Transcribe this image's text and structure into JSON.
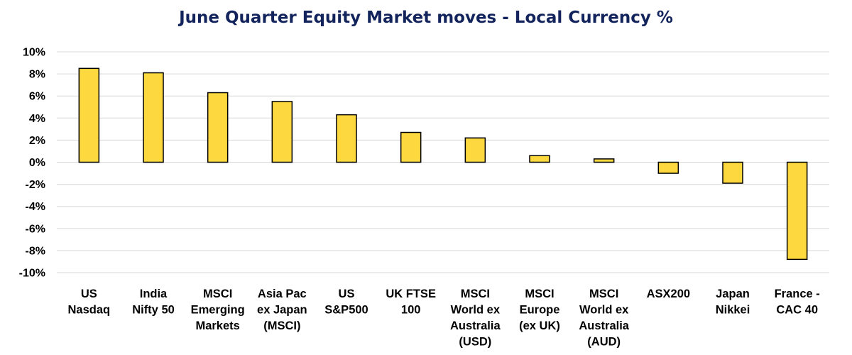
{
  "chart_data": {
    "type": "bar",
    "title": "June Quarter Equity Market moves - Local Currency %",
    "categories": [
      [
        "US",
        "Nasdaq"
      ],
      [
        "India",
        "Nifty 50"
      ],
      [
        "MSCI",
        "Emerging",
        "Markets"
      ],
      [
        "Asia Pac",
        "ex Japan",
        "(MSCI)"
      ],
      [
        "US",
        "S&P500"
      ],
      [
        "UK FTSE",
        "100"
      ],
      [
        "MSCI",
        "World ex",
        "Australia",
        "(USD)"
      ],
      [
        "MSCI",
        "Europe",
        "(ex UK)"
      ],
      [
        "MSCI",
        "World ex",
        "Australia",
        "(AUD)"
      ],
      [
        "ASX200"
      ],
      [
        "Japan",
        "Nikkei"
      ],
      [
        "France -",
        "CAC 40"
      ]
    ],
    "values": [
      8.5,
      8.1,
      6.3,
      5.5,
      4.3,
      2.7,
      2.2,
      0.6,
      0.3,
      -1.0,
      -1.9,
      -8.8
    ],
    "ylim": [
      -10,
      10
    ],
    "yticks": [
      "10%",
      "8%",
      "6%",
      "4%",
      "2%",
      "0%",
      "-2%",
      "-4%",
      "-6%",
      "-8%",
      "-10%"
    ],
    "ytick_values": [
      10,
      8,
      6,
      4,
      2,
      0,
      -2,
      -4,
      -6,
      -8,
      -10
    ],
    "grid": true,
    "legend": "none",
    "colors": {
      "bar_fill": "#fdd93f",
      "bar_stroke": "#000000",
      "grid": "#d9d9d9",
      "title": "#13235b"
    }
  }
}
